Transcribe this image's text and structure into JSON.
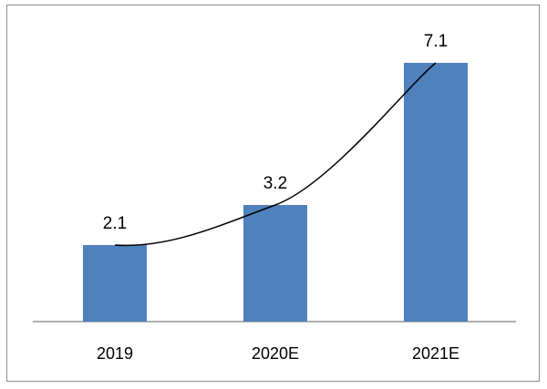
{
  "chart_data": {
    "type": "bar",
    "categories": [
      "2019",
      "2020E",
      "2021E"
    ],
    "values": [
      2.1,
      3.2,
      7.1
    ],
    "data_labels": [
      "2.1",
      "3.2",
      "7.1"
    ],
    "title": "",
    "xlabel": "",
    "ylabel": "",
    "ylim": [
      0,
      7.1
    ],
    "grid": false,
    "legend": "none",
    "trendline": "curved line through bar tops",
    "bar_color": "#4f81bd",
    "axis_color": "#7f7f7f",
    "trend_color": "#000000"
  }
}
